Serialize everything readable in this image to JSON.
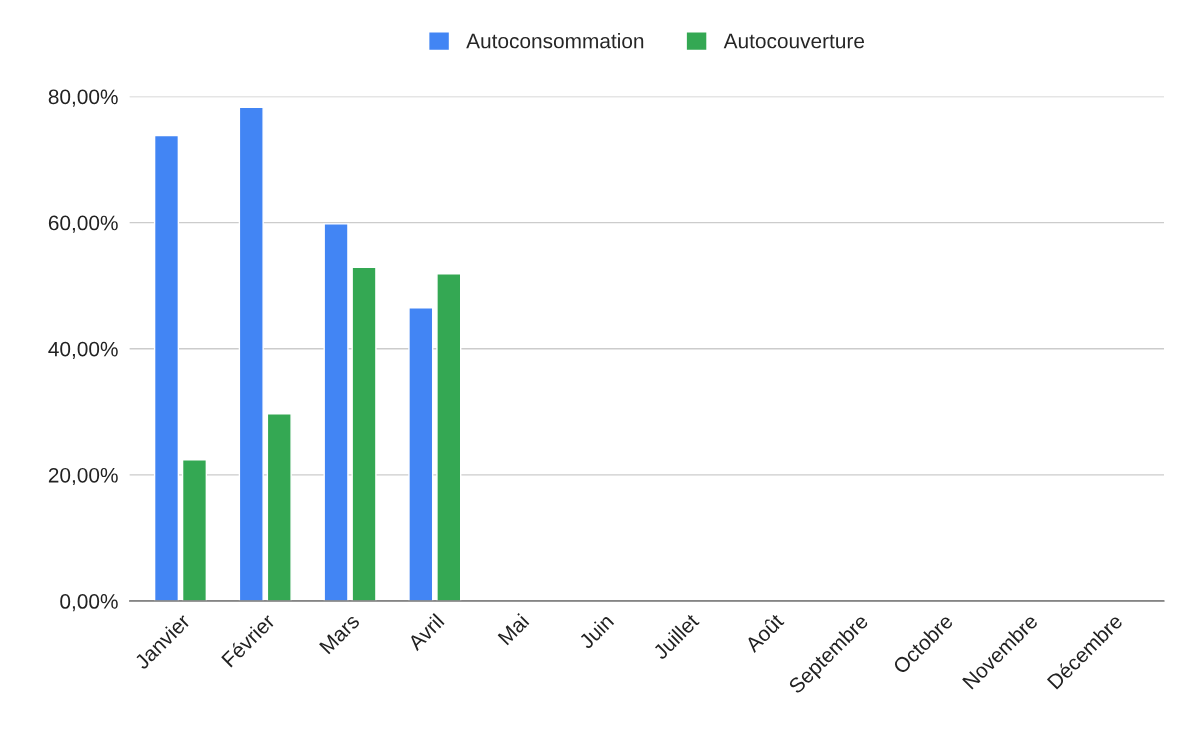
{
  "chart_data": {
    "type": "bar",
    "categories": [
      "Janvier",
      "Février",
      "Mars",
      "Avril",
      "Mai",
      "Juin",
      "Juillet",
      "Août",
      "Septembre",
      "Octobre",
      "Novembre",
      "Décembre"
    ],
    "series": [
      {
        "name": "Autoconsommation",
        "color": "#4285f4",
        "values": [
          73.8,
          78.3,
          59.8,
          46.5,
          null,
          null,
          null,
          null,
          null,
          null,
          null,
          null
        ]
      },
      {
        "name": "Autocouverture",
        "color": "#34a853",
        "values": [
          22.4,
          29.7,
          52.9,
          51.9,
          null,
          null,
          null,
          null,
          null,
          null,
          null,
          null
        ]
      }
    ],
    "ylim": [
      0,
      80
    ],
    "yticks": [
      {
        "value": 0,
        "label": "0,00%"
      },
      {
        "value": 20,
        "label": "20,00%"
      },
      {
        "value": 40,
        "label": "40,00%"
      },
      {
        "value": 60,
        "label": "60,00%"
      },
      {
        "value": 80,
        "label": "80,00%"
      }
    ],
    "grid": "y",
    "legend": "top"
  }
}
